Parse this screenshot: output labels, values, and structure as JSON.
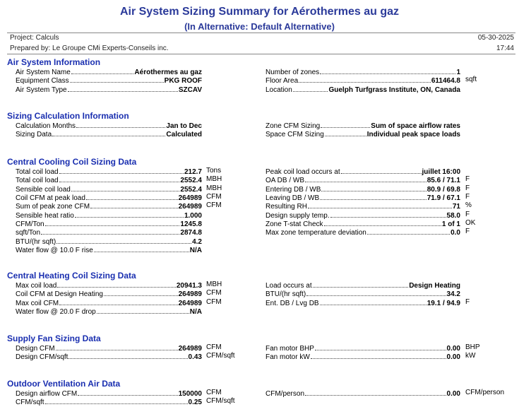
{
  "header": {
    "title": "Air System Sizing Summary for Aérothermes au gaz",
    "subtitle": "(In Alternative: Default Alternative)",
    "project": "Project: Calculs",
    "date": "05-30-2025",
    "prepared_by": "Prepared by: Le Groupe CMi Experts-Conseils inc.",
    "time": "17:44"
  },
  "sections": [
    {
      "title": "Air System Information",
      "left": [
        {
          "label": "Air System Name",
          "value": "Aérothermes au gaz"
        },
        {
          "label": "Equipment Class",
          "value": "PKG ROOF"
        },
        {
          "label": "Air System Type",
          "value": "SZCAV"
        }
      ],
      "right": [
        {
          "label": "Number of zones",
          "value": "1"
        },
        {
          "label": "Floor Area",
          "value": "611464.8",
          "unit": "sqft"
        },
        {
          "label": "Location",
          "value": "Guelph Turfgrass Institute, ON, Canada"
        }
      ]
    },
    {
      "title": "Sizing Calculation Information",
      "left": [
        {
          "label": "Calculation Months",
          "value": "Jan to Dec"
        },
        {
          "label": "Sizing Data",
          "value": "Calculated"
        }
      ],
      "right": [
        {
          "label": "Zone CFM Sizing",
          "value": "Sum of space airflow rates"
        },
        {
          "label": "Space CFM Sizing",
          "value": "Individual peak space loads"
        }
      ]
    },
    {
      "title": "Central Cooling Coil Sizing Data",
      "left": [
        {
          "label": "Total coil load",
          "value": "212.7",
          "unit": "Tons"
        },
        {
          "label": "Total coil load",
          "value": "2552.4",
          "unit": "MBH"
        },
        {
          "label": "Sensible coil load",
          "value": "2552.4",
          "unit": "MBH"
        },
        {
          "label": "Coil CFM at peak load",
          "value": "264989",
          "unit": "CFM"
        },
        {
          "label": "Sum of peak zone CFM",
          "value": "264989",
          "unit": "CFM"
        },
        {
          "label": "Sensible heat ratio",
          "value": "1.000"
        },
        {
          "label": "CFM/Ton",
          "value": "1245.8"
        },
        {
          "label": "sqft/Ton",
          "value": "2874.8"
        },
        {
          "label": "BTU/(hr sqft)",
          "value": "4.2"
        },
        {
          "label": "Water flow @ 10.0 F rise",
          "value": "N/A"
        }
      ],
      "right": [
        {
          "label": "Peak coil load occurs at",
          "value": "juillet 16:00"
        },
        {
          "label": "OA DB / WB",
          "value": "85.6 / 71.1",
          "unit": "F"
        },
        {
          "label": "Entering DB / WB",
          "value": "80.9 / 69.8",
          "unit": "F"
        },
        {
          "label": "Leaving DB / WB",
          "value": "71.9 / 67.1",
          "unit": "F"
        },
        {
          "label": "Resulting RH",
          "value": "71",
          "unit": "%"
        },
        {
          "label": "Design supply temp.",
          "value": "58.0",
          "unit": "F"
        },
        {
          "label": "Zone T-stat Check",
          "value": "1 of 1",
          "unit": "OK"
        },
        {
          "label": "Max zone temperature deviation",
          "value": "0.0",
          "unit": "F"
        }
      ]
    },
    {
      "title": "Central Heating Coil Sizing Data",
      "left": [
        {
          "label": "Max coil load",
          "value": "20941.3",
          "unit": "MBH"
        },
        {
          "label": "Coil CFM at Design Heating",
          "value": "264989",
          "unit": "CFM"
        },
        {
          "label": "Max coil CFM",
          "value": "264989",
          "unit": "CFM"
        },
        {
          "label": "Water flow @ 20.0 F drop",
          "value": "N/A"
        }
      ],
      "right": [
        {
          "label": "Load occurs at",
          "value": "Design Heating"
        },
        {
          "label": "BTU/(hr sqft)",
          "value": "34.2"
        },
        {
          "label": "Ent. DB / Lvg DB",
          "value": "19.1 / 94.9",
          "unit": "F"
        }
      ]
    },
    {
      "title": "Supply Fan Sizing Data",
      "left": [
        {
          "label": "Design CFM",
          "value": "264989",
          "unit": "CFM"
        },
        {
          "label": "Design CFM/sqft",
          "value": "0.43",
          "unit": "CFM/sqft"
        }
      ],
      "right": [
        {
          "label": "Fan motor BHP",
          "value": "0.00",
          "unit": "BHP"
        },
        {
          "label": "Fan motor kW",
          "value": "0.00",
          "unit": "kW"
        }
      ]
    },
    {
      "title": "Outdoor Ventilation Air Data",
      "left": [
        {
          "label": "Design airflow CFM",
          "value": "150000",
          "unit": "CFM"
        },
        {
          "label": "CFM/sqft",
          "value": "0.25",
          "unit": "CFM/sqft"
        }
      ],
      "right": [
        {
          "label": "CFM/person",
          "value": "0.00",
          "unit": "CFM/person"
        }
      ]
    }
  ]
}
